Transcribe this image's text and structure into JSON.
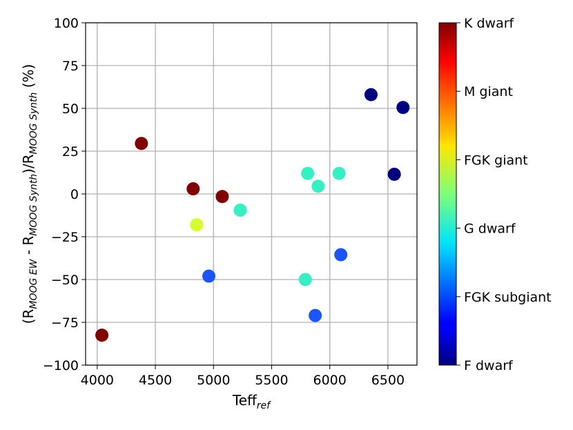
{
  "chart_data": {
    "type": "scatter",
    "xlabel": {
      "main": "Teff",
      "sub": "ref"
    },
    "ylabel": {
      "parts": [
        {
          "t": "(R",
          "sub": false
        },
        {
          "t": "MOOG EW",
          "sub": true
        },
        {
          "t": " - R",
          "sub": false
        },
        {
          "t": "MOOG Synth",
          "sub": true
        },
        {
          "t": ")/R",
          "sub": false
        },
        {
          "t": "MOOG Synth",
          "sub": true
        },
        {
          "t": " (%)",
          "sub": false
        }
      ]
    },
    "xlim": [
      3900,
      6750
    ],
    "ylim": [
      -100,
      100
    ],
    "xticks": [
      4000,
      4500,
      5000,
      5500,
      6000,
      6500
    ],
    "yticks": [
      -100,
      -75,
      -50,
      -25,
      0,
      25,
      50,
      75,
      100
    ],
    "ytick_labels": [
      "−100",
      "−75",
      "−50",
      "−25",
      "0",
      "25",
      "50",
      "75",
      "100"
    ],
    "grid": true,
    "colorbar": {
      "colormap": "jet",
      "labels_bottom_to_top": [
        "F dwarf",
        "FGK subgiant",
        "G dwarf",
        "FGK giant",
        "M giant",
        "K dwarf"
      ]
    },
    "points": [
      {
        "x": 4040,
        "y": -82.5,
        "category": "K dwarf",
        "color": "#800000"
      },
      {
        "x": 4380,
        "y": 29.5,
        "category": "K dwarf",
        "color": "#800000"
      },
      {
        "x": 4825,
        "y": 3,
        "category": "K dwarf",
        "color": "#800000"
      },
      {
        "x": 5075,
        "y": -1.5,
        "category": "K dwarf",
        "color": "#800000"
      },
      {
        "x": 4855,
        "y": -18,
        "category": "FGK giant",
        "color": "#d4ff2b"
      },
      {
        "x": 4960,
        "y": -48,
        "category": "FGK subgiant",
        "color": "#1a55ff"
      },
      {
        "x": 5230,
        "y": -9.5,
        "category": "G dwarf",
        "color": "#35f0c3"
      },
      {
        "x": 5810,
        "y": 12,
        "category": "G dwarf",
        "color": "#35f0c3"
      },
      {
        "x": 5900,
        "y": 4.5,
        "category": "G dwarf",
        "color": "#35f0c3"
      },
      {
        "x": 6080,
        "y": 12,
        "category": "G dwarf",
        "color": "#35f0c3"
      },
      {
        "x": 5790,
        "y": -50,
        "category": "G dwarf",
        "color": "#35f0c3"
      },
      {
        "x": 5875,
        "y": -71,
        "category": "FGK subgiant",
        "color": "#1a55ff"
      },
      {
        "x": 6095,
        "y": -35.5,
        "category": "FGK subgiant",
        "color": "#1a55ff"
      },
      {
        "x": 6355,
        "y": 58,
        "category": "F dwarf",
        "color": "#000080"
      },
      {
        "x": 6630,
        "y": 50.5,
        "category": "F dwarf",
        "color": "#000080"
      },
      {
        "x": 6555,
        "y": 11.5,
        "category": "F dwarf",
        "color": "#000080"
      }
    ]
  }
}
